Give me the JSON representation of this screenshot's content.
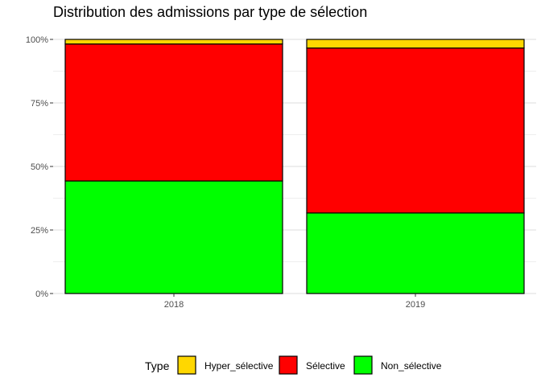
{
  "chart_data": {
    "type": "bar",
    "stacked": true,
    "normalized": true,
    "title": "Distribution des admissions par type de sélection",
    "xlabel": "",
    "ylabel": "",
    "categories": [
      "2018",
      "2019"
    ],
    "series": [
      {
        "name": "Non_sélective",
        "color": "#00FF00",
        "values": [
          44.3,
          31.7
        ]
      },
      {
        "name": "Sélective",
        "color": "#FF0000",
        "values": [
          53.9,
          64.9
        ]
      },
      {
        "name": "Hyper_sélective",
        "color": "#FFD700",
        "values": [
          1.8,
          3.4
        ]
      }
    ],
    "ylim": [
      0,
      100
    ],
    "y_ticks": [
      "0%",
      "25%",
      "50%",
      "75%",
      "100%"
    ],
    "grid": true,
    "legend": {
      "title": "Type",
      "position": "bottom",
      "order": [
        "Hyper_sélective",
        "Sélective",
        "Non_sélective"
      ]
    }
  }
}
